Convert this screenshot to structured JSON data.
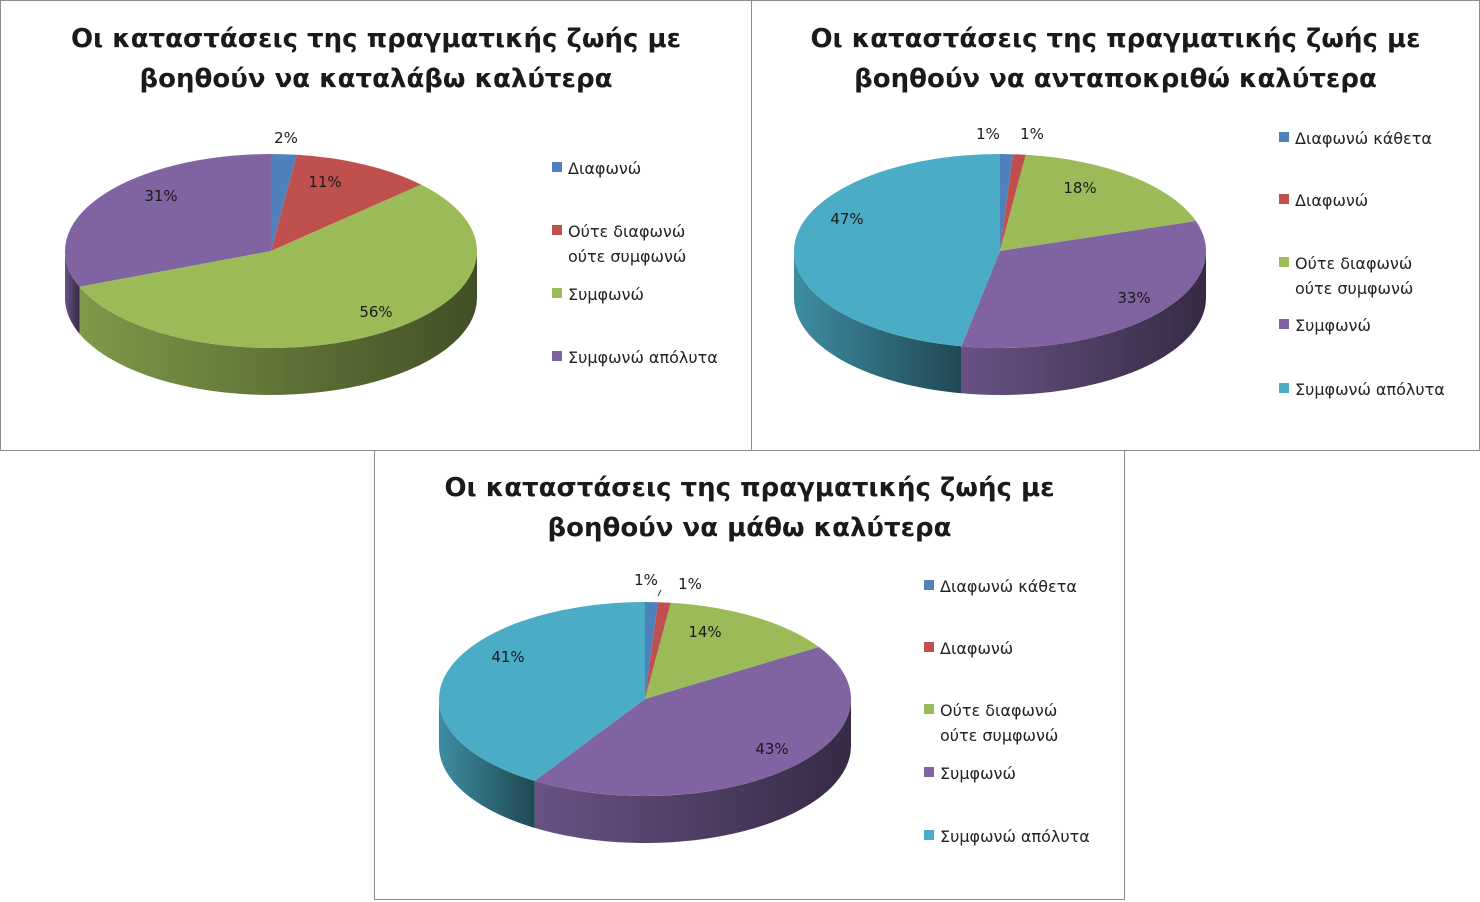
{
  "chart_data": [
    {
      "type": "pie",
      "title": [
        "Οι καταστάσεις  της πραγματικής  ζωής με",
        "βοηθούν  να καταλάβω  καλύτερα"
      ],
      "categories": [
        "Διαφωνώ",
        "Ούτε διαφωνώ\nούτε συμφωνώ",
        "Συμφωνώ",
        "Συμφωνώ  απόλυτα"
      ],
      "values": [
        2,
        11,
        56,
        31
      ],
      "labels": [
        "2%",
        "11%",
        "56%",
        "31%"
      ],
      "colors": [
        "#4f81bd",
        "#c0504d",
        "#9bbb59",
        "#8064a2"
      ],
      "legend_position": "right"
    },
    {
      "type": "pie",
      "title": [
        "Οι καταστάσεις  της πραγματικής  ζωής με",
        "βοηθούν  να ανταποκριθώ  καλύτερα"
      ],
      "categories": [
        "Διαφωνώ  κάθετα",
        "Διαφωνώ",
        "Ούτε διαφωνώ\nούτε συμφωνώ",
        "Συμφωνώ",
        "Συμφωνώ  απόλυτα"
      ],
      "values": [
        1,
        1,
        18,
        33,
        47
      ],
      "labels": [
        "1%",
        "1%",
        "18%",
        "33%",
        "47%"
      ],
      "colors": [
        "#4f81bd",
        "#c0504d",
        "#9bbb59",
        "#8064a2",
        "#4bacc6"
      ],
      "legend_position": "right"
    },
    {
      "type": "pie",
      "title": [
        "Οι καταστάσεις  της πραγματικής  ζωής με",
        "βοηθούν  να μάθω  καλύτερα"
      ],
      "categories": [
        "Διαφωνώ  κάθετα",
        "Διαφωνώ",
        "Ούτε διαφωνώ\nούτε συμφωνώ",
        "Συμφωνώ",
        "Συμφωνώ  απόλυτα"
      ],
      "values": [
        1,
        1,
        14,
        43,
        41
      ],
      "labels": [
        "1%",
        "1%",
        "14%",
        "43%",
        "41%"
      ],
      "colors": [
        "#4f81bd",
        "#c0504d",
        "#9bbb59",
        "#8064a2",
        "#4bacc6"
      ],
      "legend_position": "right"
    }
  ]
}
